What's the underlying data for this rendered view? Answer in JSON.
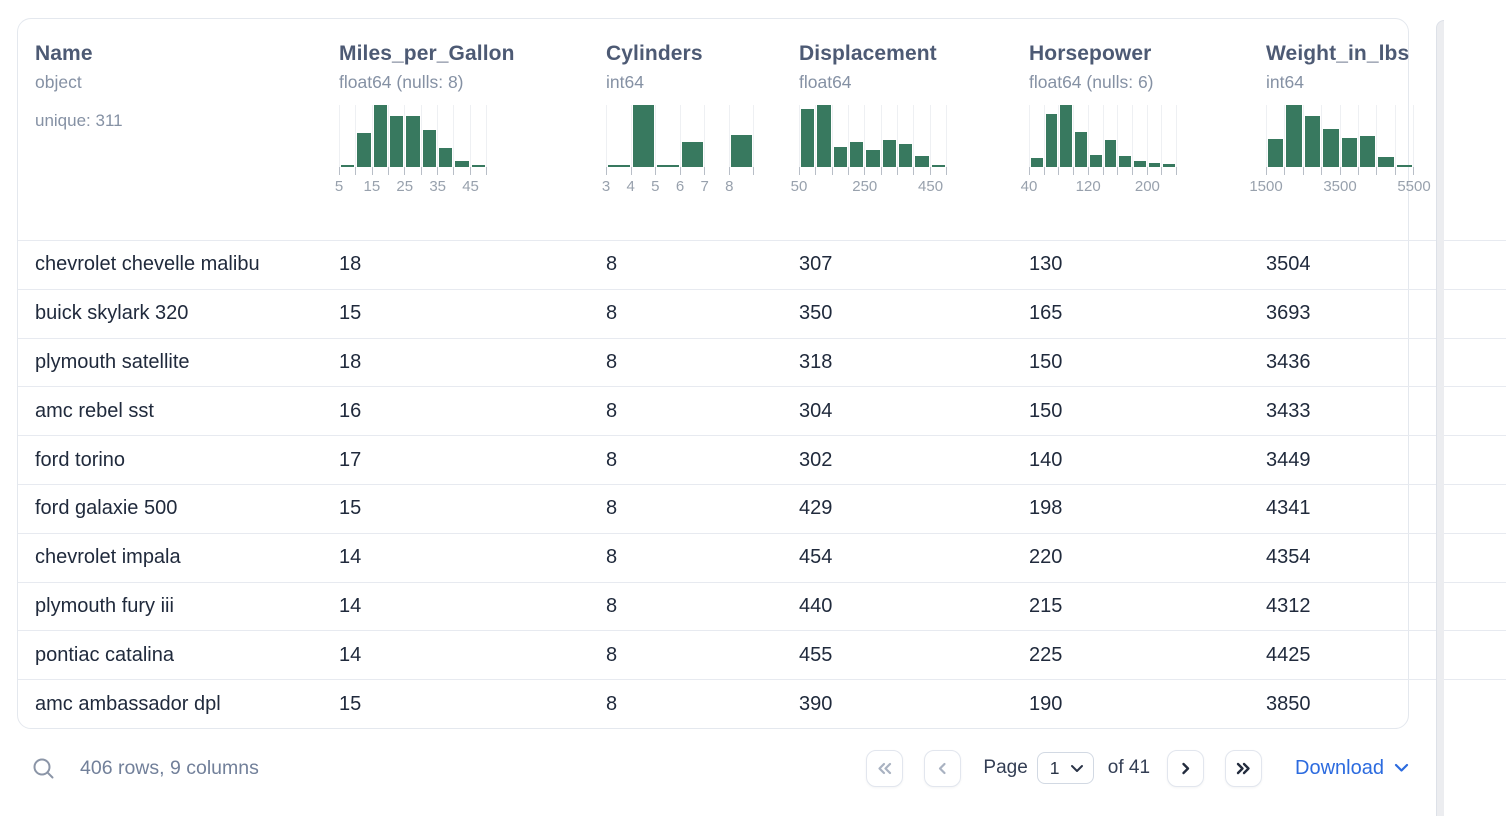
{
  "table": {
    "columns": [
      {
        "name": "Name",
        "type": "object",
        "meta": "unique: 311"
      },
      {
        "name": "Miles_per_Gallon",
        "type": "float64 (nulls: 8)",
        "histogram": {
          "type": "bar",
          "bars_pct": [
            2,
            55,
            100,
            82,
            82,
            60,
            30,
            10,
            2
          ],
          "bin_start": 5,
          "bin_width": 5,
          "tick_labels": [
            {
              "text": "5",
              "boundary": 0
            },
            {
              "text": "15",
              "boundary": 2
            },
            {
              "text": "25",
              "boundary": 4
            },
            {
              "text": "35",
              "boundary": 6
            },
            {
              "text": "45",
              "boundary": 8
            }
          ]
        }
      },
      {
        "name": "Cylinders",
        "type": "int64",
        "histogram": {
          "type": "bar",
          "bars_pct": [
            3,
            100,
            2,
            40,
            0,
            52
          ],
          "bin_start": 3,
          "bin_width": 1,
          "tick_labels": [
            {
              "text": "3",
              "boundary": 0
            },
            {
              "text": "4",
              "boundary": 1
            },
            {
              "text": "5",
              "boundary": 2
            },
            {
              "text": "6",
              "boundary": 3
            },
            {
              "text": "7",
              "boundary": 4
            },
            {
              "text": "8",
              "boundary": 5
            }
          ]
        }
      },
      {
        "name": "Displacement",
        "type": "float64",
        "histogram": {
          "type": "bar",
          "bars_pct": [
            93,
            100,
            33,
            40,
            28,
            43,
            37,
            17,
            4
          ],
          "bin_start": 50,
          "bin_width": 50,
          "tick_labels": [
            {
              "text": "50",
              "boundary": 0
            },
            {
              "text": "250",
              "boundary": 4
            },
            {
              "text": "450",
              "boundary": 8
            }
          ]
        }
      },
      {
        "name": "Horsepower",
        "type": "float64 (nulls: 6)",
        "histogram": {
          "type": "bar",
          "bars_pct": [
            15,
            85,
            100,
            57,
            20,
            43,
            17,
            10,
            6,
            5
          ],
          "bin_start": 40,
          "bin_width": 20,
          "tick_labels": [
            {
              "text": "40",
              "boundary": 0
            },
            {
              "text": "120",
              "boundary": 4
            },
            {
              "text": "200",
              "boundary": 8
            }
          ]
        }
      },
      {
        "name": "Weight_in_lbs",
        "type": "int64",
        "histogram": {
          "type": "bar",
          "bars_pct": [
            45,
            100,
            83,
            62,
            47,
            50,
            16,
            2
          ],
          "bin_start": 1500,
          "bin_width": 500,
          "tick_labels": [
            {
              "text": "1500",
              "boundary": 0
            },
            {
              "text": "3500",
              "boundary": 4
            },
            {
              "text": "5500",
              "boundary": 8
            }
          ]
        }
      }
    ],
    "rows": [
      [
        "chevrolet chevelle malibu",
        "18",
        "8",
        "307",
        "130",
        "3504"
      ],
      [
        "buick skylark 320",
        "15",
        "8",
        "350",
        "165",
        "3693"
      ],
      [
        "plymouth satellite",
        "18",
        "8",
        "318",
        "150",
        "3436"
      ],
      [
        "amc rebel sst",
        "16",
        "8",
        "304",
        "150",
        "3433"
      ],
      [
        "ford torino",
        "17",
        "8",
        "302",
        "140",
        "3449"
      ],
      [
        "ford galaxie 500",
        "15",
        "8",
        "429",
        "198",
        "4341"
      ],
      [
        "chevrolet impala",
        "14",
        "8",
        "454",
        "220",
        "4354"
      ],
      [
        "plymouth fury iii",
        "14",
        "8",
        "440",
        "215",
        "4312"
      ],
      [
        "pontiac catalina",
        "14",
        "8",
        "455",
        "225",
        "4425"
      ],
      [
        "amc ambassador dpl",
        "15",
        "8",
        "390",
        "190",
        "3850"
      ]
    ]
  },
  "footer": {
    "status": "406 rows, 9 columns",
    "page_label": "Page",
    "current_page": "1",
    "of_label": "of 41",
    "download_label": "Download",
    "icons": {
      "search": "search-icon",
      "first": "chevrons-left-icon",
      "prev": "chevron-left-icon",
      "next": "chevron-right-icon",
      "last": "chevrons-right-icon",
      "page_caret": "chevron-down-icon",
      "download_caret": "chevron-down-icon"
    }
  },
  "colors": {
    "histogram_green": "#38795f",
    "header_text": "#4d5a74",
    "meta_text": "#8591a4",
    "cell_text": "#202a3c",
    "link_blue": "#2c6bdf"
  }
}
